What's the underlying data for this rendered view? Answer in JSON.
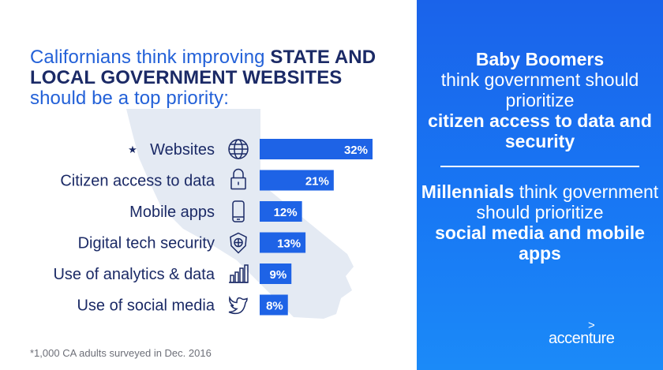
{
  "headline": {
    "p1": "Californians think improving ",
    "b1": "STATE AND LOCAL GOVERNMENT WEBSITES",
    "p2": " should be a top priority:"
  },
  "footnote": "*1,000 CA adults surveyed in Dec. 2016",
  "chart_data": {
    "type": "bar",
    "orientation": "horizontal",
    "categories": [
      "Websites",
      "Citizen access to data",
      "Mobile apps",
      "Digital tech security",
      "Use of analytics & data",
      "Use of social media"
    ],
    "values": [
      32,
      21,
      12,
      13,
      9,
      8
    ],
    "value_labels": [
      "32%",
      "21%",
      "12%",
      "13%",
      "9%",
      "8%"
    ],
    "marker": "★",
    "icons": [
      "globe-icon",
      "padlock-icon",
      "mobile-phone-icon",
      "shield-icon",
      "bar-chart-icon",
      "twitter-bird-icon"
    ],
    "bar_color": "#1e63e6"
  },
  "panel": {
    "boomers": {
      "bold1": "Baby Boomers",
      "text": "think government should prioritize",
      "bold2": "citizen access to data and security"
    },
    "millennials": {
      "bold1": "Millennials",
      "text": "think government should prioritize",
      "bold2": "social media and mobile apps"
    }
  },
  "brand": {
    "name": "accenture",
    "mark": ">"
  },
  "colors": {
    "navy": "#1b2a66",
    "blue_text": "#2361d8",
    "panel_blue": "#1877f4",
    "map": "#e4eaf3"
  }
}
